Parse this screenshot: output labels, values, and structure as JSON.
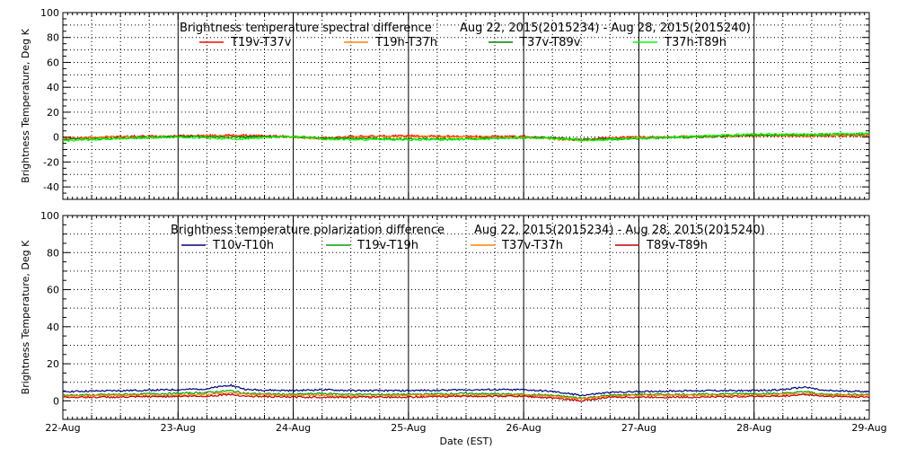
{
  "chart_data": [
    {
      "type": "line",
      "title": "Brightness temperature spectral difference",
      "date_range": "Aug 22, 2015(2015234) - Aug 28, 2015(2015240)",
      "xlabel": "",
      "ylabel": "Brightness Temperature, Deg K",
      "xlim": [
        "22-Aug",
        "29-Aug"
      ],
      "ylim": [
        -50,
        100
      ],
      "yticks": [
        -40,
        -20,
        0,
        20,
        40,
        60,
        80,
        100
      ],
      "xticks": [
        "22-Aug",
        "23-Aug",
        "24-Aug",
        "25-Aug",
        "26-Aug",
        "27-Aug",
        "28-Aug",
        "29-Aug"
      ],
      "grid": true,
      "legend": "top",
      "x": [
        22.0,
        22.5,
        23.0,
        23.5,
        24.0,
        24.25,
        24.5,
        25.0,
        25.5,
        26.0,
        26.25,
        26.5,
        26.75,
        27.0,
        27.5,
        28.0,
        28.5,
        29.0
      ],
      "series": [
        {
          "name": "T19v-T37v",
          "color": "#ff0000",
          "values": [
            -1,
            0.5,
            1,
            1.5,
            0.5,
            -1,
            0.5,
            1,
            0.5,
            0.5,
            -1,
            -2,
            -0.5,
            0,
            0.5,
            1.5,
            1,
            1
          ]
        },
        {
          "name": "T19h-T37h",
          "color": "#ff8000",
          "values": [
            -1,
            0,
            0.5,
            1,
            0,
            -1.5,
            0,
            0.5,
            0,
            0,
            -1.5,
            -3,
            -1,
            -0.5,
            0,
            1,
            1,
            1.5
          ]
        },
        {
          "name": "T37v-T89v",
          "color": "#008000",
          "values": [
            -2,
            -1,
            0.5,
            0,
            0.5,
            -1,
            -1,
            -1.5,
            -1.5,
            -0.5,
            -0.5,
            -2,
            -1.5,
            -1,
            0,
            1.5,
            2,
            2.5
          ]
        },
        {
          "name": "T37h-T89h",
          "color": "#00ff00",
          "values": [
            -3,
            -1,
            0,
            -1.5,
            0.5,
            -1.5,
            -2,
            -2,
            -2,
            -0.5,
            -1,
            -2.5,
            -2,
            -1,
            0.5,
            2.5,
            2,
            3
          ]
        }
      ]
    },
    {
      "type": "line",
      "title": "Brightness temperature polarization difference",
      "date_range": "Aug 22, 2015(2015234) - Aug 28, 2015(2015240)",
      "xlabel": "Date (EST)",
      "ylabel": "Brightness Temperature, Deg K",
      "xlim": [
        "22-Aug",
        "29-Aug"
      ],
      "ylim": [
        -10,
        100
      ],
      "yticks": [
        0,
        20,
        40,
        60,
        80,
        100
      ],
      "xticks": [
        "22-Aug",
        "23-Aug",
        "24-Aug",
        "25-Aug",
        "26-Aug",
        "27-Aug",
        "28-Aug",
        "29-Aug"
      ],
      "grid": true,
      "legend": "top",
      "x": [
        22.0,
        22.5,
        23.0,
        23.25,
        23.45,
        23.6,
        24.0,
        24.25,
        24.5,
        25.0,
        25.5,
        26.0,
        26.25,
        26.5,
        26.75,
        27.0,
        27.5,
        28.0,
        28.25,
        28.45,
        28.6,
        29.0
      ],
      "series": [
        {
          "name": "T10v-T10h",
          "color": "#000080",
          "values": [
            5,
            5.5,
            6,
            6.5,
            8.5,
            6,
            5.5,
            6,
            5.5,
            5.5,
            6,
            6,
            5,
            3,
            4.5,
            5,
            5.5,
            5.5,
            6,
            7.5,
            5.5,
            5
          ]
        },
        {
          "name": "T19v-T19h",
          "color": "#00a000",
          "values": [
            3,
            3.5,
            4,
            4.5,
            5.5,
            4,
            3.5,
            4,
            3.5,
            3.5,
            4,
            3.5,
            3,
            1.5,
            3,
            3.5,
            3.5,
            4,
            4,
            5,
            3.5,
            3.5
          ]
        },
        {
          "name": "T37v-T37h",
          "color": "#ff8000",
          "values": [
            2.5,
            3,
            3,
            3.5,
            4.5,
            3.5,
            3,
            3,
            2.5,
            3,
            3,
            3,
            2.5,
            1,
            2.5,
            3,
            3,
            3,
            3.5,
            4,
            3,
            3
          ]
        },
        {
          "name": "T89v-T89h",
          "color": "#c00000",
          "values": [
            2,
            2,
            2.5,
            2.5,
            3.5,
            2.5,
            2,
            2,
            2,
            2,
            2.5,
            2.5,
            1.5,
            0,
            2,
            2,
            2,
            2.5,
            2.5,
            3.5,
            2.5,
            2
          ]
        }
      ]
    }
  ]
}
